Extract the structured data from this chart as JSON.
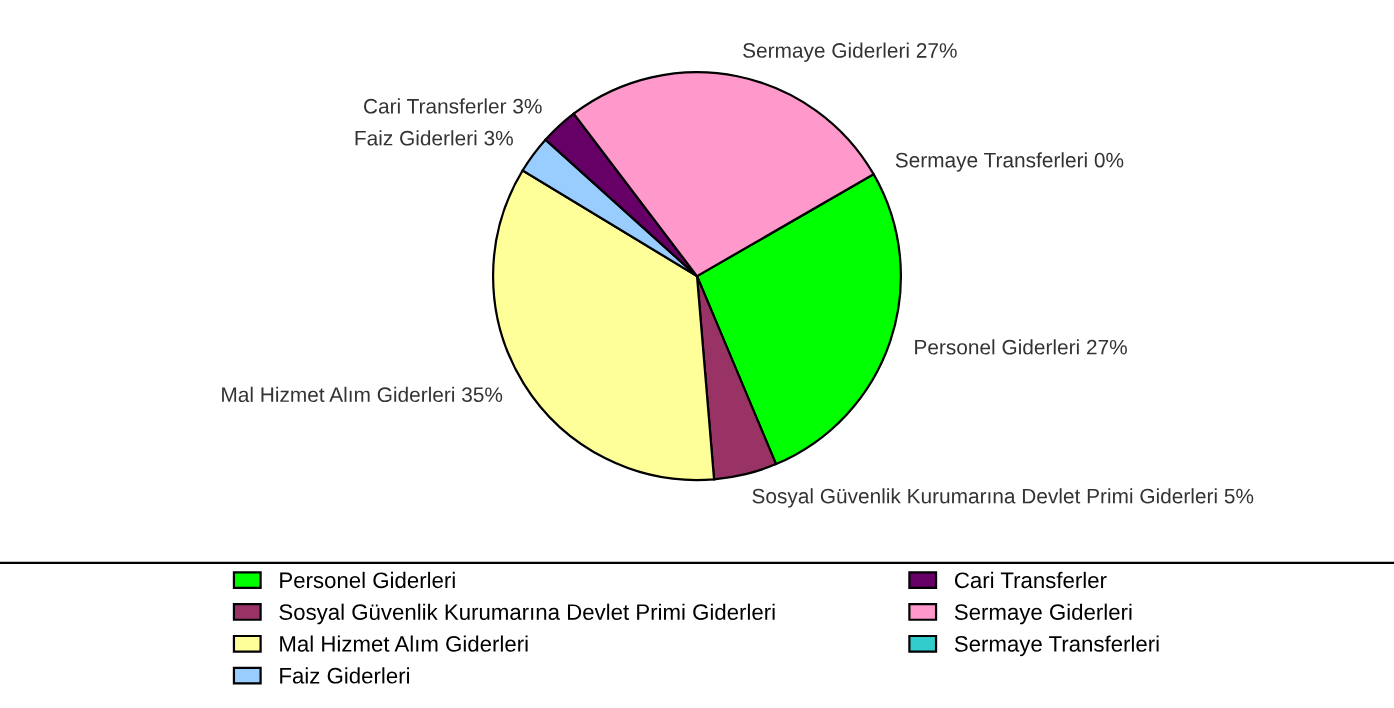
{
  "chart_data": {
    "type": "pie",
    "categories": [
      "Personel Giderleri",
      "Sosyal Güvenlik Kurumarına Devlet Primi Giderleri",
      "Mal Hizmet Alım Giderleri",
      "Faiz Giderleri",
      "Cari Transferler",
      "Sermaye Giderleri",
      "Sermaye Transferleri"
    ],
    "values": [
      27,
      5,
      35,
      3,
      3,
      27,
      0
    ],
    "colors": [
      "#00ff00",
      "#993366",
      "#ffff99",
      "#99ccff",
      "#660066",
      "#ff99cc",
      "#33cccc"
    ],
    "value_labels": [
      "27%",
      "5%",
      "35%",
      "3%",
      "3%",
      "27%",
      "0%"
    ],
    "legend": "bottom"
  }
}
